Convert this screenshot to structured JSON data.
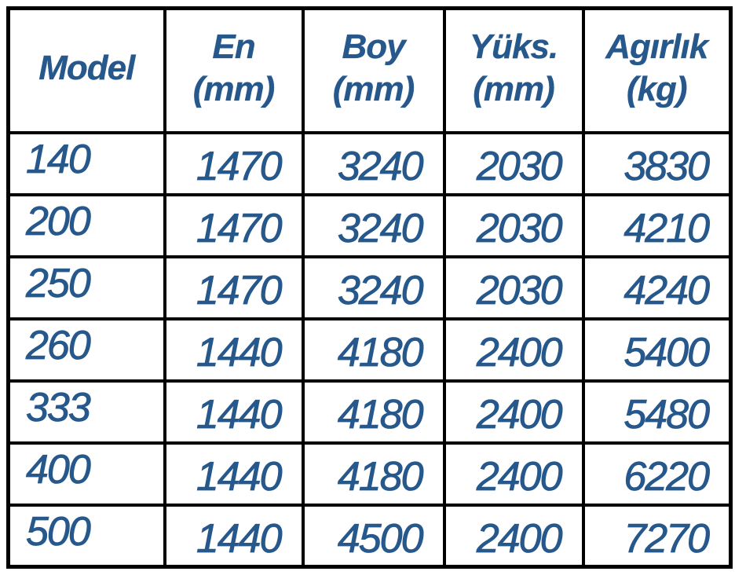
{
  "colors": {
    "text": "#26588C",
    "border": "#000000",
    "background": "#FFFFFF"
  },
  "table": {
    "columns": [
      {
        "id": "model",
        "lines": [
          "Model",
          ""
        ]
      },
      {
        "id": "en",
        "lines": [
          "En",
          "(mm)"
        ]
      },
      {
        "id": "boy",
        "lines": [
          "Boy",
          "(mm)"
        ]
      },
      {
        "id": "yuks",
        "lines": [
          "Yüks.",
          "(mm)"
        ]
      },
      {
        "id": "agirlik",
        "lines": [
          "Agırlık",
          "(kg)"
        ]
      }
    ],
    "rows": [
      {
        "model": "140",
        "en": "1470",
        "boy": "3240",
        "yuks": "2030",
        "agirlik": "3830"
      },
      {
        "model": "200",
        "en": "1470",
        "boy": "3240",
        "yuks": "2030",
        "agirlik": "4210"
      },
      {
        "model": "250",
        "en": "1470",
        "boy": "3240",
        "yuks": "2030",
        "agirlik": "4240"
      },
      {
        "model": "260",
        "en": "1440",
        "boy": "4180",
        "yuks": "2400",
        "agirlik": "5400"
      },
      {
        "model": "333",
        "en": "1440",
        "boy": "4180",
        "yuks": "2400",
        "agirlik": "5480"
      },
      {
        "model": "400",
        "en": "1440",
        "boy": "4180",
        "yuks": "2400",
        "agirlik": "6220"
      },
      {
        "model": "500",
        "en": "1440",
        "boy": "4500",
        "yuks": "2400",
        "agirlik": "7270"
      }
    ]
  },
  "chart_data": {
    "type": "table",
    "title": "",
    "columns": [
      "Model",
      "En (mm)",
      "Boy (mm)",
      "Yüks. (mm)",
      "Agırlık (kg)"
    ],
    "rows": [
      [
        "140",
        1470,
        3240,
        2030,
        3830
      ],
      [
        "200",
        1470,
        3240,
        2030,
        4210
      ],
      [
        "250",
        1470,
        3240,
        2030,
        4240
      ],
      [
        "260",
        1440,
        4180,
        2400,
        5400
      ],
      [
        "333",
        1440,
        4180,
        2400,
        5480
      ],
      [
        "400",
        1440,
        4180,
        2400,
        6220
      ],
      [
        "500",
        1440,
        4500,
        2400,
        7270
      ]
    ]
  }
}
